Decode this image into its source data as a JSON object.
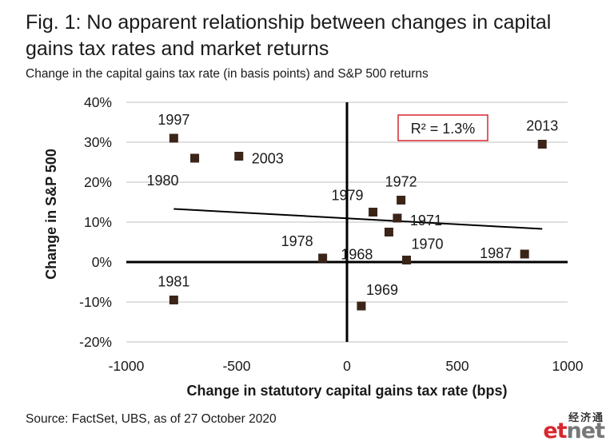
{
  "title": "Fig. 1: No apparent relationship between changes in capital gains tax rates and market returns",
  "subtitle": "Change in the capital gains tax rate (in basis points) and S&P 500 returns",
  "source": "Source: FactSet, UBS, as of 27 October 2020",
  "watermark": {
    "chinese": "经济通",
    "brand_prefix": "et",
    "brand_suffix": "net"
  },
  "colors": {
    "marker": "#3b2418",
    "r2_box": "#d9272e",
    "grid": "#bfbfbf",
    "axis": "#000000"
  },
  "chart_data": {
    "type": "scatter",
    "title": "Fig. 1: No apparent relationship between changes in capital gains tax rates and market returns",
    "subtitle": "Change in the capital gains tax rate (in basis points) and S&P 500 returns",
    "xlabel": "Change in statutory capital gains tax rate (bps)",
    "ylabel": "Change in S&P 500",
    "xlim": [
      -1000,
      1000
    ],
    "ylim": [
      -20,
      40
    ],
    "xticks": [
      -1000,
      -500,
      0,
      500,
      1000
    ],
    "xtick_labels": [
      "-1000",
      "-500",
      "0",
      "500",
      "1000"
    ],
    "yticks": [
      -20,
      -10,
      0,
      10,
      20,
      30,
      40
    ],
    "ytick_labels": [
      "-20%",
      "-10%",
      "0%",
      "10%",
      "20%",
      "30%",
      "40%"
    ],
    "grid": true,
    "points": [
      {
        "label": "1997",
        "x": -785,
        "y": 31,
        "label_pos": "above"
      },
      {
        "label": "1980",
        "x": -690,
        "y": 26,
        "label_pos": "below-left"
      },
      {
        "label": "2003",
        "x": -490,
        "y": 26.5,
        "label_pos": "right"
      },
      {
        "label": "2013",
        "x": 885,
        "y": 29.5,
        "label_pos": "above"
      },
      {
        "label": "1972",
        "x": 245,
        "y": 15.5,
        "label_pos": "above"
      },
      {
        "label": "1979",
        "x": 118,
        "y": 12.5,
        "label_pos": "above-left"
      },
      {
        "label": "1971",
        "x": 228,
        "y": 11,
        "label_pos": "right"
      },
      {
        "label": "1968",
        "x": 190,
        "y": 7.5,
        "label_pos": "below-left"
      },
      {
        "label": "1978",
        "x": -110,
        "y": 1,
        "label_pos": "above-left"
      },
      {
        "label": "1970",
        "x": 270,
        "y": 0.5,
        "label_pos": "above-right"
      },
      {
        "label": "1987",
        "x": 805,
        "y": 2,
        "label_pos": "left"
      },
      {
        "label": "1981",
        "x": -785,
        "y": -9.5,
        "label_pos": "above"
      },
      {
        "label": "1969",
        "x": 65,
        "y": -11,
        "label_pos": "above-right"
      }
    ],
    "trendline": {
      "x": [
        -785,
        885
      ],
      "y": [
        13.3,
        8.3
      ]
    },
    "annotation": "R² = 1.3%"
  }
}
